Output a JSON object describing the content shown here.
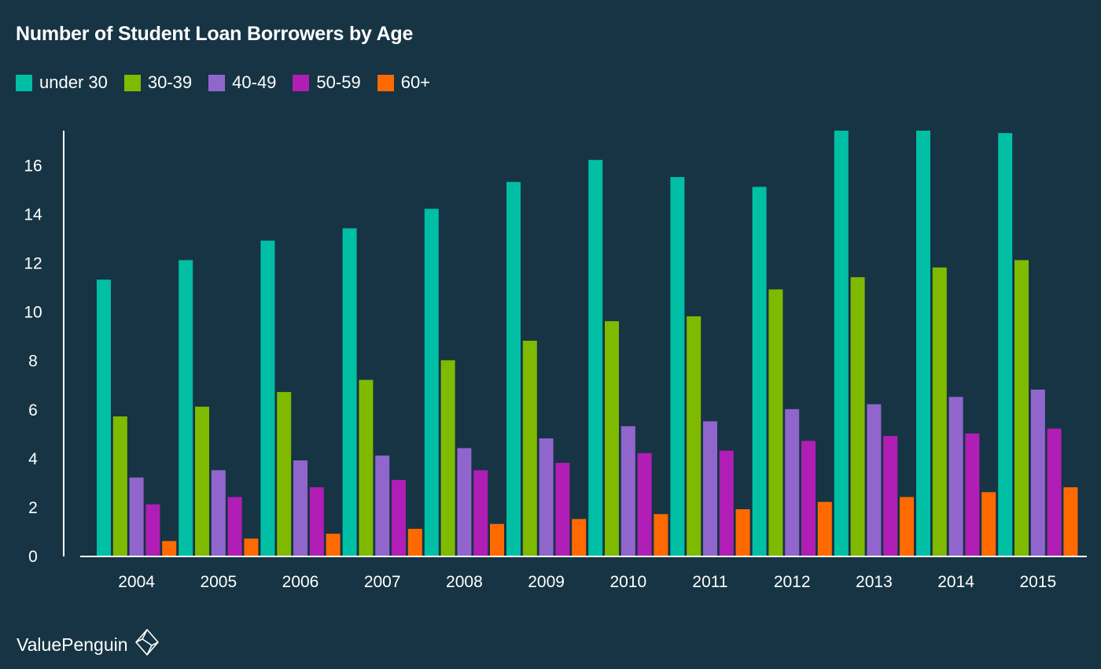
{
  "chart_data": {
    "type": "bar",
    "title": "Number of Student Loan Borrowers by Age",
    "categories": [
      "2004",
      "2005",
      "2006",
      "2007",
      "2008",
      "2009",
      "2010",
      "2011",
      "2012",
      "2013",
      "2014",
      "2015"
    ],
    "series": [
      {
        "name": "under 30",
        "color": "#00bfa5",
        "values": [
          11.3,
          12.1,
          12.9,
          13.4,
          14.2,
          15.3,
          16.2,
          15.5,
          15.1,
          17.4,
          17.4,
          17.3
        ]
      },
      {
        "name": "30-39",
        "color": "#7fba00",
        "values": [
          5.7,
          6.1,
          6.7,
          7.2,
          8.0,
          8.8,
          9.6,
          9.8,
          10.9,
          11.4,
          11.8,
          12.1
        ]
      },
      {
        "name": "40-49",
        "color": "#9166cc",
        "values": [
          3.2,
          3.5,
          3.9,
          4.1,
          4.4,
          4.8,
          5.3,
          5.5,
          6.0,
          6.2,
          6.5,
          6.8
        ]
      },
      {
        "name": "50-59",
        "color": "#b01eb5",
        "values": [
          2.1,
          2.4,
          2.8,
          3.1,
          3.5,
          3.8,
          4.2,
          4.3,
          4.7,
          4.9,
          5.0,
          5.2
        ]
      },
      {
        "name": "60+",
        "color": "#ff6a00",
        "values": [
          0.6,
          0.7,
          0.9,
          1.1,
          1.3,
          1.5,
          1.7,
          1.9,
          2.2,
          2.4,
          2.6,
          2.8
        ]
      }
    ],
    "yticks": [
      0,
      2,
      4,
      6,
      8,
      10,
      12,
      14,
      16
    ],
    "ylim": [
      0,
      17.4
    ],
    "xlabel": "",
    "ylabel": "",
    "grid": false,
    "legend_position": "top-left"
  },
  "branding": {
    "text": "ValuePenguin",
    "logo_icon": "valuepenguin-logo-icon"
  },
  "colors": {
    "background": "#163444",
    "axis": "#ffffff",
    "text": "#ffffff"
  }
}
